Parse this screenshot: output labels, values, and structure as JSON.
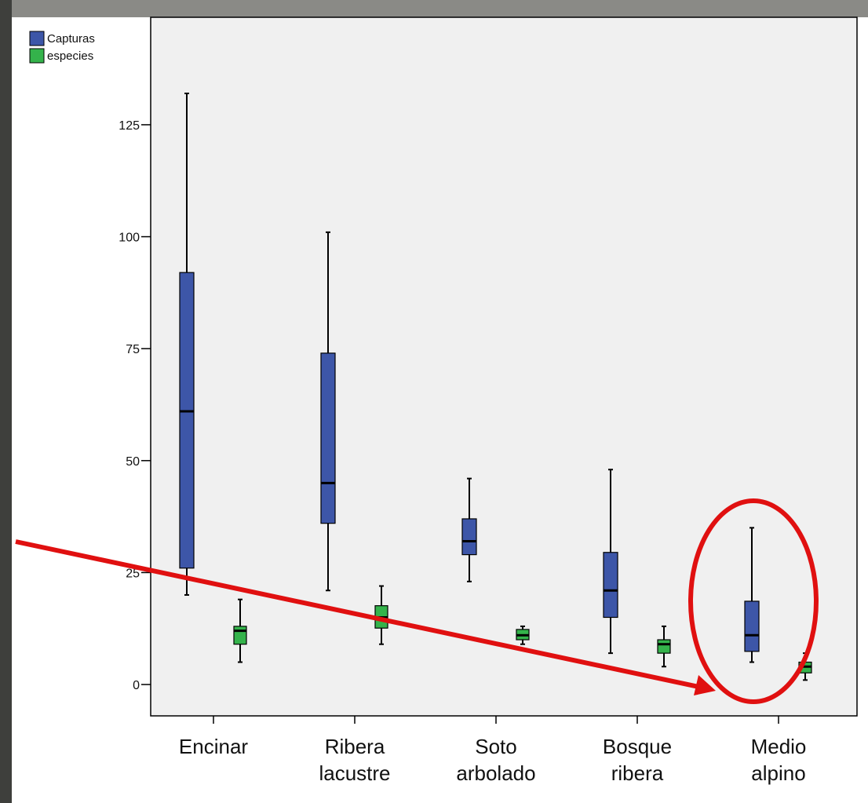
{
  "chart_data": {
    "type": "boxplot",
    "categories": [
      "Encinar",
      "Ribera lacustre",
      "Soto arbolado",
      "Bosque ribera",
      "Medio alpino"
    ],
    "series": [
      {
        "name": "Capturas",
        "color": "#3d56a8",
        "boxes": [
          {
            "min": 20,
            "q1": 26,
            "median": 61,
            "q3": 92,
            "max": 132
          },
          {
            "min": 21,
            "q1": 36,
            "median": 45,
            "q3": 74,
            "max": 101
          },
          {
            "min": 23,
            "q1": 29,
            "median": 32,
            "q3": 37,
            "max": 46
          },
          {
            "min": 7,
            "q1": 15,
            "median": 21,
            "q3": 29.5,
            "max": 48
          },
          {
            "min": 5,
            "q1": 7.4,
            "median": 11,
            "q3": 18.6,
            "max": 35
          }
        ]
      },
      {
        "name": "especies",
        "color": "#34b34b",
        "boxes": [
          {
            "min": 5,
            "q1": 9,
            "median": 12,
            "q3": 13,
            "max": 19
          },
          {
            "min": 9,
            "q1": 12.6,
            "median": 15,
            "q3": 17.6,
            "max": 22
          },
          {
            "min": 9,
            "q1": 10,
            "median": 11,
            "q3": 12.3,
            "max": 13
          },
          {
            "min": 4,
            "q1": 7,
            "median": 9,
            "q3": 10,
            "max": 13
          },
          {
            "min": 1,
            "q1": 2.6,
            "median": 4,
            "q3": 5,
            "max": 7
          }
        ]
      }
    ],
    "ylim": [
      -7,
      149
    ],
    "yticks": [
      0,
      25,
      50,
      75,
      100,
      125
    ]
  }
}
